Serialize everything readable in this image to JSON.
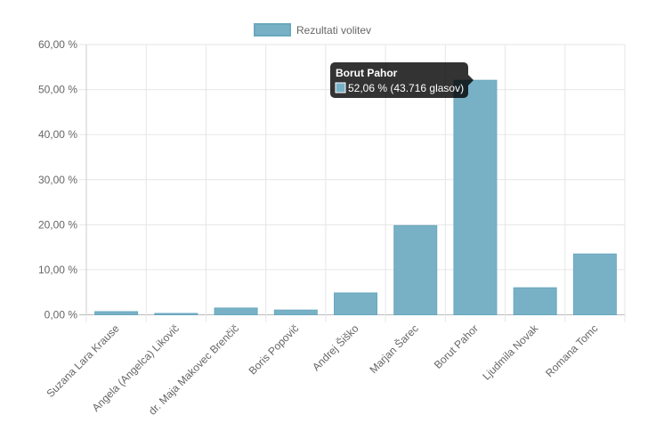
{
  "chart_data": {
    "type": "bar",
    "title": "",
    "xlabel": "",
    "ylabel": "",
    "legend": {
      "position": "top",
      "entries": [
        "Rezultati volitev"
      ]
    },
    "categories": [
      "Suzana Lara Krause",
      "Angela (Angelca) Likovič",
      "dr. Maja Makovec Brenčič",
      "Boris Popovič",
      "Andrej Šiško",
      "Marjan Šarec",
      "Borut Pahor",
      "Ljudmila Novak",
      "Romana Tomc"
    ],
    "series": [
      {
        "name": "Rezultati volitev",
        "values": [
          0.7,
          0.3,
          1.5,
          1.05,
          4.85,
          19.8,
          52.06,
          6.0,
          13.5
        ]
      }
    ],
    "ylim": [
      0,
      60
    ],
    "yticks": [
      "0,00 %",
      "10,00 %",
      "20,00 %",
      "30,00 %",
      "40,00 %",
      "50,00 %",
      "60,00 %"
    ],
    "grid": true,
    "colors": {
      "bar": "#78b1c6",
      "bar_border": "#6aa8be",
      "tooltip_bg": "#000000"
    },
    "tooltip": {
      "category_index": 6,
      "title": "Borut Pahor",
      "body": "52,06 % (43.716 glasov)"
    }
  }
}
